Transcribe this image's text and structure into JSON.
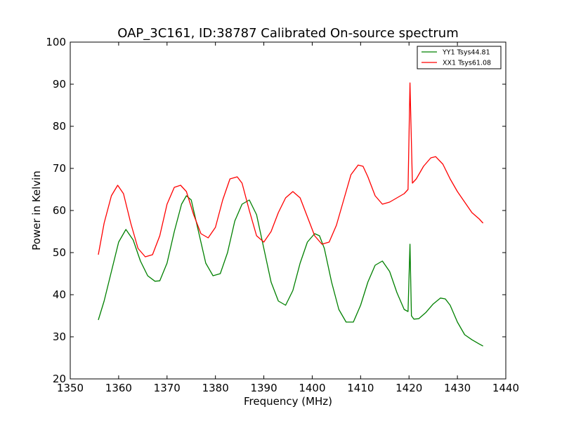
{
  "chart_data": {
    "type": "line",
    "title": "OAP_3C161, ID:38787 Calibrated On-source spectrum",
    "xlabel": "Frequency (MHz)",
    "ylabel": "Power in Kelvin",
    "xlim": [
      1350,
      1440
    ],
    "ylim": [
      20,
      100
    ],
    "xticks": [
      1350,
      1360,
      1370,
      1380,
      1390,
      1400,
      1410,
      1420,
      1430,
      1440
    ],
    "yticks": [
      20,
      30,
      40,
      50,
      60,
      70,
      80,
      90,
      100
    ],
    "grid": false,
    "legend_position": "top-right",
    "series": [
      {
        "name": "YY1 Tsys44.81",
        "color": "#008000",
        "x": [
          1355.8,
          1357.0,
          1358.5,
          1360.0,
          1361.5,
          1363.0,
          1364.5,
          1366.0,
          1367.5,
          1368.5,
          1370.0,
          1371.5,
          1373.0,
          1374.0,
          1375.0,
          1376.5,
          1378.0,
          1379.5,
          1381.0,
          1382.5,
          1384.0,
          1385.5,
          1387.0,
          1388.5,
          1390.0,
          1391.5,
          1393.0,
          1394.5,
          1396.0,
          1397.5,
          1399.0,
          1400.5,
          1401.5,
          1402.5,
          1404.0,
          1405.5,
          1407.0,
          1408.5,
          1410.0,
          1411.5,
          1413.0,
          1414.5,
          1416.0,
          1417.5,
          1419.0,
          1419.8,
          1420.2,
          1420.5,
          1421.0,
          1422.0,
          1423.5,
          1425.0,
          1426.5,
          1427.5,
          1428.5,
          1430.0,
          1431.5,
          1433.0,
          1434.5,
          1435.3
        ],
        "y": [
          34.0,
          38.5,
          45.5,
          52.5,
          55.5,
          53.0,
          48.0,
          44.5,
          43.2,
          43.3,
          47.5,
          55.0,
          61.5,
          63.5,
          62.5,
          55.0,
          47.5,
          44.5,
          45.0,
          50.0,
          57.5,
          61.5,
          62.5,
          59.0,
          51.0,
          43.0,
          38.5,
          37.5,
          41.0,
          47.5,
          52.5,
          54.5,
          54.0,
          51.0,
          43.0,
          36.5,
          33.5,
          33.5,
          37.5,
          43.0,
          47.0,
          48.0,
          45.5,
          40.5,
          36.5,
          36.0,
          52.0,
          35.0,
          34.2,
          34.3,
          35.8,
          37.8,
          39.2,
          39.0,
          37.5,
          33.5,
          30.5,
          29.3,
          28.3,
          27.8
        ]
      },
      {
        "name": "XX1 Tsys61.08",
        "color": "#ff0000",
        "x": [
          1355.8,
          1357.0,
          1358.5,
          1359.8,
          1361.0,
          1362.5,
          1364.0,
          1365.5,
          1367.0,
          1368.5,
          1370.0,
          1371.5,
          1372.8,
          1374.0,
          1375.5,
          1377.0,
          1378.5,
          1380.0,
          1381.5,
          1383.0,
          1384.5,
          1385.5,
          1387.0,
          1388.5,
          1390.0,
          1391.5,
          1393.0,
          1394.5,
          1396.0,
          1397.5,
          1399.0,
          1400.5,
          1402.0,
          1403.5,
          1405.0,
          1406.5,
          1408.0,
          1409.5,
          1410.5,
          1411.5,
          1413.0,
          1414.5,
          1416.0,
          1417.5,
          1419.0,
          1419.8,
          1420.2,
          1420.7,
          1421.5,
          1423.0,
          1424.5,
          1425.5,
          1427.0,
          1428.5,
          1430.0,
          1431.5,
          1433.0,
          1434.5,
          1435.3
        ],
        "y": [
          49.5,
          57.0,
          63.5,
          66.0,
          64.0,
          57.0,
          51.0,
          49.0,
          49.5,
          54.0,
          61.5,
          65.5,
          66.0,
          64.5,
          59.0,
          54.5,
          53.5,
          56.0,
          62.5,
          67.5,
          68.0,
          66.5,
          60.0,
          54.0,
          52.5,
          55.0,
          59.5,
          63.0,
          64.5,
          63.0,
          58.5,
          54.0,
          52.0,
          52.5,
          56.5,
          62.5,
          68.5,
          70.8,
          70.5,
          68.0,
          63.5,
          61.5,
          62.0,
          63.0,
          64.0,
          65.0,
          90.3,
          66.5,
          67.5,
          70.5,
          72.5,
          72.8,
          71.0,
          67.5,
          64.5,
          62.0,
          59.5,
          58.0,
          57.0
        ]
      }
    ]
  }
}
